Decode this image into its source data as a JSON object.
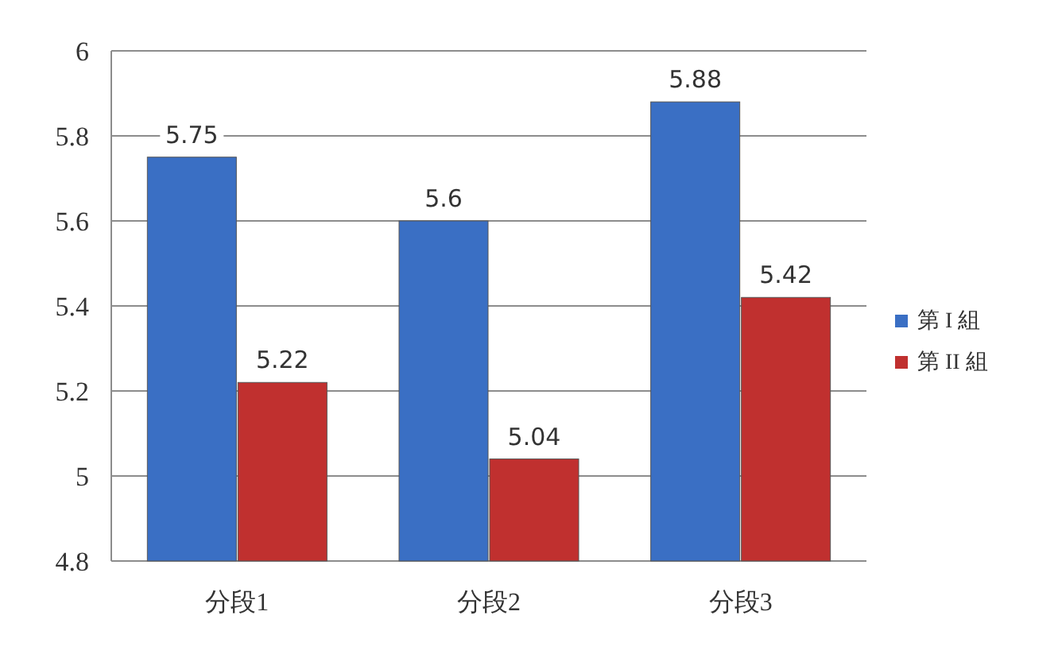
{
  "chart_data": {
    "type": "bar",
    "categories": [
      "分段1",
      "分段2",
      "分段3"
    ],
    "series": [
      {
        "name": "第 I 組",
        "color": "#3a6fc4",
        "values": [
          5.75,
          5.6,
          5.88
        ]
      },
      {
        "name": "第 II 組",
        "color": "#c0302f",
        "values": [
          5.22,
          5.04,
          5.42
        ]
      }
    ],
    "ylim": [
      4.8,
      6
    ],
    "yticks": [
      4.8,
      5,
      5.2,
      5.4,
      5.6,
      5.8,
      6
    ],
    "grid": "y",
    "legend": "right",
    "data_labels": true
  }
}
